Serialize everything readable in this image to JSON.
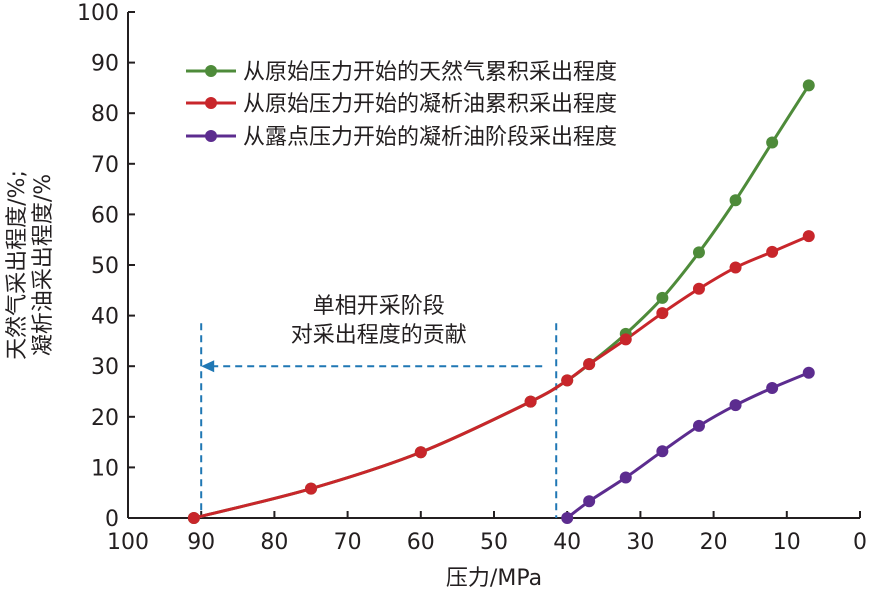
{
  "chart_data": {
    "type": "line",
    "xlabel": "压力/MPa",
    "ylabel_lines": [
      "天然气采出程度/%;",
      "凝析油采出程度/%"
    ],
    "xlim": [
      100,
      0
    ],
    "ylim": [
      0,
      100
    ],
    "x_ticks": [
      100,
      90,
      80,
      70,
      60,
      50,
      40,
      30,
      20,
      10,
      0
    ],
    "y_ticks": [
      0,
      10,
      20,
      30,
      40,
      50,
      60,
      70,
      80,
      90,
      100
    ],
    "legend_position": "top-right",
    "series": [
      {
        "name": "从原始压力开始的天然气累积采出程度",
        "color": "#4e8b3a",
        "x": [
          91,
          75,
          60,
          45,
          40,
          37,
          32,
          27,
          22,
          17,
          12,
          7
        ],
        "y": [
          0,
          5.8,
          13,
          23,
          27.2,
          30.4,
          36.4,
          43.5,
          52.5,
          62.8,
          74.2,
          85.5
        ]
      },
      {
        "name": "从原始压力开始的凝析油累积采出程度",
        "color": "#c8262b",
        "x": [
          91,
          75,
          60,
          45,
          40,
          37,
          32,
          27,
          22,
          17,
          12,
          7
        ],
        "y": [
          0,
          5.8,
          13,
          23,
          27.2,
          30.4,
          35.3,
          40.5,
          45.3,
          49.5,
          52.6,
          55.7
        ]
      },
      {
        "name": "从露点压力开始的凝析油阶段采出程度",
        "color": "#5c2c8f",
        "x": [
          40,
          37,
          32,
          27,
          22,
          17,
          12,
          7
        ],
        "y": [
          0,
          3.3,
          8,
          13.2,
          18.2,
          22.3,
          25.7,
          28.7
        ]
      }
    ],
    "annotation": {
      "lines": [
        "单相开采阶段",
        "对采出程度的贡献"
      ],
      "x_start": 90,
      "x_end": 41.5,
      "arrow_y": 30
    }
  }
}
